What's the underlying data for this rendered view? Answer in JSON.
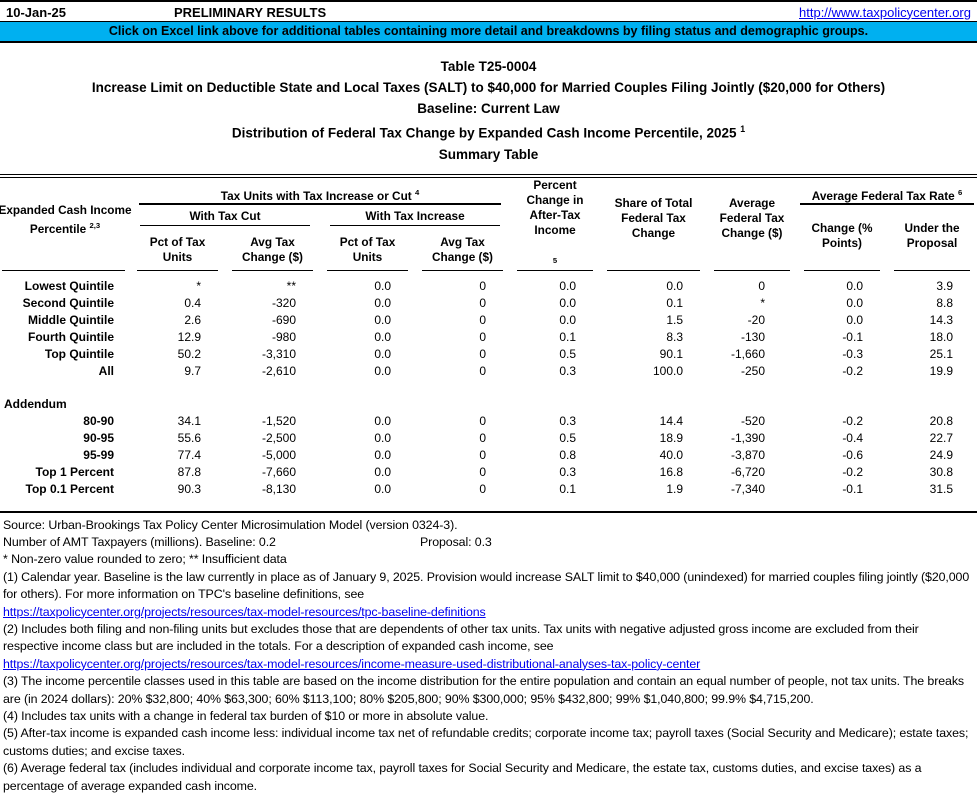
{
  "topbar": {
    "date": "10-Jan-25",
    "status": "PRELIMINARY RESULTS",
    "link": "http://www.taxpolicycenter.org"
  },
  "banner": {
    "text": "Click on Excel link above for additional tables containing more detail and breakdowns by filing status and demographic groups."
  },
  "colors": {
    "banner_bg": "#00B0F0",
    "link_blue": "#0000EE"
  },
  "title": {
    "table_number": "Table T25-0004",
    "line2": "Increase Limit on Deductible State and Local Taxes (SALT) to $40,000 for Married Couples Filing Jointly ($20,000 for Others)",
    "line3": "Baseline: Current Law",
    "line4": "Distribution of Federal Tax Change by Expanded Cash Income Percentile, 2025",
    "line4_sup": "1",
    "line5": "Summary Table"
  },
  "table": {
    "headers": {
      "income_percentile_line1": "Expanded Cash Income",
      "income_percentile_line2": "Percentile",
      "income_percentile_sup": "2,3",
      "tax_units_group": "Tax Units with Tax Increase or Cut",
      "tax_units_group_sup": "4",
      "with_tax_cut": "With Tax Cut",
      "with_tax_increase": "With Tax Increase",
      "pct_of_tax_units": "Pct of Tax Units",
      "avg_tax_change": "Avg Tax Change ($)",
      "pct_change_after_tax": "Percent Change in After-Tax Income",
      "pct_change_after_tax_sup": "5",
      "share_of_total": "Share of Total Federal Tax Change",
      "avg_federal_tax_change": "Average Federal Tax Change ($)",
      "avg_federal_tax_rate_group": "Average Federal Tax Rate",
      "avg_federal_tax_rate_sup": "6",
      "rate_change": "Change (% Points)",
      "rate_under_proposal": "Under the Proposal"
    },
    "rows": [
      {
        "label": "Lowest Quintile",
        "values": [
          "*",
          "**",
          "0.0",
          "0",
          "0.0",
          "0.0",
          "0",
          "0.0",
          "3.9"
        ]
      },
      {
        "label": "Second Quintile",
        "values": [
          "0.4",
          "-320",
          "0.0",
          "0",
          "0.0",
          "0.1",
          "*",
          "0.0",
          "8.8"
        ]
      },
      {
        "label": "Middle Quintile",
        "values": [
          "2.6",
          "-690",
          "0.0",
          "0",
          "0.0",
          "1.5",
          "-20",
          "0.0",
          "14.3"
        ]
      },
      {
        "label": "Fourth Quintile",
        "values": [
          "12.9",
          "-980",
          "0.0",
          "0",
          "0.1",
          "8.3",
          "-130",
          "-0.1",
          "18.0"
        ]
      },
      {
        "label": "Top Quintile",
        "values": [
          "50.2",
          "-3,310",
          "0.0",
          "0",
          "0.5",
          "90.1",
          "-1,660",
          "-0.3",
          "25.1"
        ]
      },
      {
        "label": "All",
        "values": [
          "9.7",
          "-2,610",
          "0.0",
          "0",
          "0.3",
          "100.0",
          "-250",
          "-0.2",
          "19.9"
        ]
      }
    ],
    "addendum_label": "Addendum",
    "addendum_rows": [
      {
        "label": "80-90",
        "values": [
          "34.1",
          "-1,520",
          "0.0",
          "0",
          "0.3",
          "14.4",
          "-520",
          "-0.2",
          "20.8"
        ]
      },
      {
        "label": "90-95",
        "values": [
          "55.6",
          "-2,500",
          "0.0",
          "0",
          "0.5",
          "18.9",
          "-1,390",
          "-0.4",
          "22.7"
        ]
      },
      {
        "label": "95-99",
        "values": [
          "77.4",
          "-5,000",
          "0.0",
          "0",
          "0.8",
          "40.0",
          "-3,870",
          "-0.6",
          "24.9"
        ]
      },
      {
        "label": "Top 1 Percent",
        "values": [
          "87.8",
          "-7,660",
          "0.0",
          "0",
          "0.3",
          "16.8",
          "-6,720",
          "-0.2",
          "30.8"
        ]
      },
      {
        "label": "Top 0.1 Percent",
        "values": [
          "90.3",
          "-8,130",
          "0.0",
          "0",
          "0.1",
          "1.9",
          "-7,340",
          "-0.1",
          "31.5"
        ]
      }
    ]
  },
  "footnotes": {
    "source": "Source: Urban-Brookings Tax Policy Center Microsimulation Model (version 0324-3).",
    "amt_baseline": "Number of AMT Taxpayers (millions).  Baseline: 0.2",
    "amt_proposal": "Proposal: 0.3",
    "stars": "* Non-zero value rounded to zero; ** Insufficient data",
    "fn1": "(1) Calendar year. Baseline is the law currently in place as of January 9, 2025. Provision would increase SALT limit to $40,000 (unindexed) for married couples filing jointly ($20,000 for others). For more information on TPC's baseline definitions, see",
    "link1": "https://taxpolicycenter.org/projects/resources/tax-model-resources/tpc-baseline-definitions",
    "fn2": "(2) Includes both filing and non-filing units but excludes those that are dependents of other tax units. Tax units with negative adjusted gross income are excluded from their respective income class but are included in the totals. For a description of expanded cash income, see",
    "link2": "https://taxpolicycenter.org/projects/resources/tax-model-resources/income-measure-used-distributional-analyses-tax-policy-center",
    "fn3": "(3) The income percentile classes used in this table are based on the income distribution for the entire population and contain an equal number of people, not tax units. The breaks are (in 2024 dollars): 20% $32,800; 40% $63,300; 60% $113,100; 80% $205,800; 90% $300,000; 95% $432,800; 99% $1,040,800; 99.9% $4,715,200.",
    "fn4": "(4) Includes tax units with a change in federal tax burden of $10 or more in absolute value.",
    "fn5": "(5) After-tax income is expanded cash income less: individual income tax net of refundable credits; corporate income tax; payroll taxes (Social Security and Medicare); estate taxes; customs duties; and excise taxes.",
    "fn6": "(6) Average federal tax (includes individual and corporate income tax, payroll taxes for Social Security and Medicare, the estate tax, customs duties, and excise taxes) as a percentage of average expanded cash income."
  }
}
